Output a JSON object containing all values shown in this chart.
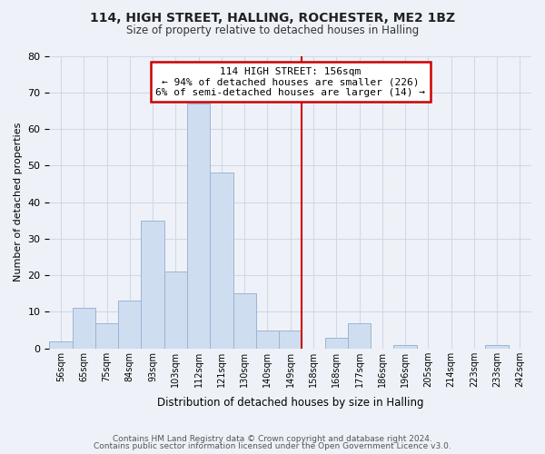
{
  "title": "114, HIGH STREET, HALLING, ROCHESTER, ME2 1BZ",
  "subtitle": "Size of property relative to detached houses in Halling",
  "xlabel": "Distribution of detached houses by size in Halling",
  "ylabel": "Number of detached properties",
  "footer_lines": [
    "Contains HM Land Registry data © Crown copyright and database right 2024.",
    "Contains public sector information licensed under the Open Government Licence v3.0."
  ],
  "bin_labels": [
    "56sqm",
    "65sqm",
    "75sqm",
    "84sqm",
    "93sqm",
    "103sqm",
    "112sqm",
    "121sqm",
    "130sqm",
    "140sqm",
    "149sqm",
    "158sqm",
    "168sqm",
    "177sqm",
    "186sqm",
    "196sqm",
    "205sqm",
    "214sqm",
    "223sqm",
    "233sqm",
    "242sqm"
  ],
  "bar_heights": [
    2,
    11,
    7,
    13,
    35,
    21,
    67,
    48,
    15,
    5,
    5,
    0,
    3,
    7,
    0,
    1,
    0,
    0,
    0,
    1,
    0
  ],
  "bar_color": "#cfddf0",
  "bar_edge_color": "#9ab5d5",
  "grid_color": "#d0d8e8",
  "background_color": "#eef2f8",
  "vline_color": "#cc0000",
  "annotation_title": "114 HIGH STREET: 156sqm",
  "annotation_line1": "← 94% of detached houses are smaller (226)",
  "annotation_line2": "6% of semi-detached houses are larger (14) →",
  "annotation_box_color": "#ffffff",
  "annotation_box_edge": "#cc0000",
  "ylim": [
    0,
    80
  ],
  "yticks": [
    0,
    10,
    20,
    30,
    40,
    50,
    60,
    70,
    80
  ]
}
